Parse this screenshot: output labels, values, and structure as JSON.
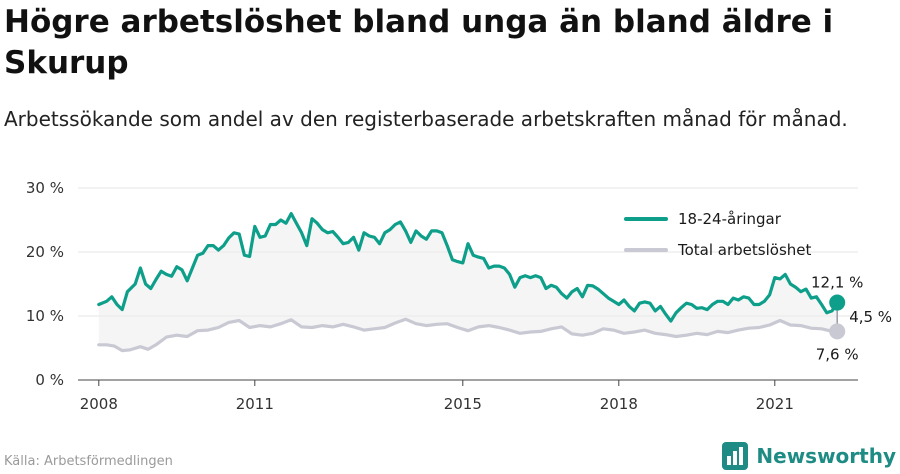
{
  "title": "Högre arbetslöshet bland unga än bland äldre i Skurup",
  "subtitle": "Arbetssökande som andel av den registerbaserade arbetskraften månad för månad.",
  "source": "Källa: Arbetsförmedlingen",
  "brand": "Newsworthy",
  "colors": {
    "youth": "#0e9f8b",
    "total": "#c9c9d4",
    "band": "#ececec",
    "brand": "#1e8c84"
  },
  "chart_data": {
    "type": "line",
    "x_unit": "year (decimal, monthly)",
    "x_ticks": [
      2008,
      2011,
      2015,
      2018,
      2021
    ],
    "x_tick_labels": [
      "2008",
      "2011",
      "2015",
      "2018",
      "2021"
    ],
    "y_ticks": [
      0,
      10,
      20,
      30
    ],
    "y_tick_labels": [
      "0 %",
      "10 %",
      "20 %",
      "30 %"
    ],
    "ylim": [
      0,
      30
    ],
    "xlim": [
      2007.6,
      2022.6
    ],
    "grid": true,
    "legend_position": "top-right",
    "series": [
      {
        "name": "18-24-åringar",
        "color": "#0e9f8b",
        "end_label": "12,1 %",
        "points": [
          [
            2008.0,
            11.8
          ],
          [
            2008.15,
            12.3
          ],
          [
            2008.25,
            13.0
          ],
          [
            2008.35,
            11.8
          ],
          [
            2008.45,
            11.0
          ],
          [
            2008.55,
            13.8
          ],
          [
            2008.7,
            15.0
          ],
          [
            2008.8,
            17.5
          ],
          [
            2008.9,
            15.0
          ],
          [
            2009.0,
            14.3
          ],
          [
            2009.1,
            15.7
          ],
          [
            2009.2,
            17.0
          ],
          [
            2009.3,
            16.5
          ],
          [
            2009.4,
            16.2
          ],
          [
            2009.5,
            17.7
          ],
          [
            2009.6,
            17.2
          ],
          [
            2009.7,
            15.5
          ],
          [
            2009.8,
            17.5
          ],
          [
            2009.9,
            19.5
          ],
          [
            2010.0,
            19.8
          ],
          [
            2010.1,
            21.0
          ],
          [
            2010.2,
            21.0
          ],
          [
            2010.3,
            20.3
          ],
          [
            2010.4,
            21.0
          ],
          [
            2010.5,
            22.2
          ],
          [
            2010.6,
            23.0
          ],
          [
            2010.7,
            22.8
          ],
          [
            2010.8,
            19.5
          ],
          [
            2010.9,
            19.3
          ],
          [
            2011.0,
            24.0
          ],
          [
            2011.1,
            22.3
          ],
          [
            2011.2,
            22.5
          ],
          [
            2011.3,
            24.3
          ],
          [
            2011.4,
            24.3
          ],
          [
            2011.5,
            25.0
          ],
          [
            2011.6,
            24.5
          ],
          [
            2011.7,
            26.0
          ],
          [
            2011.8,
            24.5
          ],
          [
            2011.9,
            23.0
          ],
          [
            2012.0,
            21.0
          ],
          [
            2012.1,
            25.2
          ],
          [
            2012.2,
            24.5
          ],
          [
            2012.3,
            23.5
          ],
          [
            2012.4,
            23.0
          ],
          [
            2012.5,
            23.2
          ],
          [
            2012.6,
            22.3
          ],
          [
            2012.7,
            21.3
          ],
          [
            2012.8,
            21.5
          ],
          [
            2012.9,
            22.3
          ],
          [
            2013.0,
            20.3
          ],
          [
            2013.1,
            23.0
          ],
          [
            2013.2,
            22.5
          ],
          [
            2013.3,
            22.3
          ],
          [
            2013.4,
            21.3
          ],
          [
            2013.5,
            23.0
          ],
          [
            2013.6,
            23.5
          ],
          [
            2013.7,
            24.3
          ],
          [
            2013.8,
            24.7
          ],
          [
            2013.9,
            23.3
          ],
          [
            2014.0,
            21.5
          ],
          [
            2014.1,
            23.3
          ],
          [
            2014.2,
            22.5
          ],
          [
            2014.3,
            22.0
          ],
          [
            2014.4,
            23.3
          ],
          [
            2014.5,
            23.3
          ],
          [
            2014.6,
            23.0
          ],
          [
            2014.7,
            21.0
          ],
          [
            2014.8,
            18.8
          ],
          [
            2014.9,
            18.5
          ],
          [
            2015.0,
            18.3
          ],
          [
            2015.1,
            21.3
          ],
          [
            2015.2,
            19.5
          ],
          [
            2015.3,
            19.2
          ],
          [
            2015.4,
            19.0
          ],
          [
            2015.5,
            17.5
          ],
          [
            2015.6,
            17.8
          ],
          [
            2015.7,
            17.8
          ],
          [
            2015.8,
            17.5
          ],
          [
            2015.9,
            16.5
          ],
          [
            2016.0,
            14.5
          ],
          [
            2016.1,
            16.0
          ],
          [
            2016.2,
            16.3
          ],
          [
            2016.3,
            16.0
          ],
          [
            2016.4,
            16.3
          ],
          [
            2016.5,
            16.0
          ],
          [
            2016.6,
            14.3
          ],
          [
            2016.7,
            14.8
          ],
          [
            2016.8,
            14.5
          ],
          [
            2016.9,
            13.5
          ],
          [
            2017.0,
            12.8
          ],
          [
            2017.1,
            13.8
          ],
          [
            2017.2,
            14.3
          ],
          [
            2017.3,
            13.0
          ],
          [
            2017.4,
            14.8
          ],
          [
            2017.5,
            14.7
          ],
          [
            2017.6,
            14.2
          ],
          [
            2017.7,
            13.5
          ],
          [
            2017.8,
            12.8
          ],
          [
            2017.9,
            12.3
          ],
          [
            2018.0,
            11.8
          ],
          [
            2018.1,
            12.5
          ],
          [
            2018.2,
            11.5
          ],
          [
            2018.3,
            10.8
          ],
          [
            2018.4,
            12.0
          ],
          [
            2018.5,
            12.2
          ],
          [
            2018.6,
            12.0
          ],
          [
            2018.7,
            10.8
          ],
          [
            2018.8,
            11.5
          ],
          [
            2018.9,
            10.3
          ],
          [
            2019.0,
            9.2
          ],
          [
            2019.1,
            10.5
          ],
          [
            2019.2,
            11.3
          ],
          [
            2019.3,
            12.0
          ],
          [
            2019.4,
            11.8
          ],
          [
            2019.5,
            11.2
          ],
          [
            2019.6,
            11.3
          ],
          [
            2019.7,
            11.0
          ],
          [
            2019.8,
            11.8
          ],
          [
            2019.9,
            12.3
          ],
          [
            2020.0,
            12.3
          ],
          [
            2020.1,
            11.8
          ],
          [
            2020.2,
            12.8
          ],
          [
            2020.3,
            12.5
          ],
          [
            2020.4,
            13.0
          ],
          [
            2020.5,
            12.8
          ],
          [
            2020.6,
            11.8
          ],
          [
            2020.7,
            11.8
          ],
          [
            2020.8,
            12.3
          ],
          [
            2020.9,
            13.3
          ],
          [
            2021.0,
            16.0
          ],
          [
            2021.1,
            15.8
          ],
          [
            2021.2,
            16.5
          ],
          [
            2021.3,
            15.0
          ],
          [
            2021.4,
            14.5
          ],
          [
            2021.5,
            13.8
          ],
          [
            2021.6,
            14.2
          ],
          [
            2021.7,
            12.8
          ],
          [
            2021.8,
            13.0
          ],
          [
            2021.9,
            11.8
          ],
          [
            2022.0,
            10.5
          ],
          [
            2022.1,
            10.8
          ],
          [
            2022.2,
            12.1
          ]
        ]
      },
      {
        "name": "Total arbetslöshet",
        "color": "#c9c9d4",
        "end_label": "7,6 %",
        "points": [
          [
            2008.0,
            5.5
          ],
          [
            2008.15,
            5.5
          ],
          [
            2008.3,
            5.3
          ],
          [
            2008.45,
            4.6
          ],
          [
            2008.6,
            4.7
          ],
          [
            2008.8,
            5.2
          ],
          [
            2008.95,
            4.8
          ],
          [
            2009.1,
            5.5
          ],
          [
            2009.3,
            6.7
          ],
          [
            2009.5,
            7.0
          ],
          [
            2009.7,
            6.8
          ],
          [
            2009.9,
            7.7
          ],
          [
            2010.1,
            7.8
          ],
          [
            2010.3,
            8.2
          ],
          [
            2010.5,
            9.0
          ],
          [
            2010.7,
            9.3
          ],
          [
            2010.9,
            8.2
          ],
          [
            2011.1,
            8.5
          ],
          [
            2011.3,
            8.3
          ],
          [
            2011.5,
            8.8
          ],
          [
            2011.7,
            9.4
          ],
          [
            2011.9,
            8.3
          ],
          [
            2012.1,
            8.2
          ],
          [
            2012.3,
            8.5
          ],
          [
            2012.5,
            8.3
          ],
          [
            2012.7,
            8.7
          ],
          [
            2012.9,
            8.3
          ],
          [
            2013.1,
            7.8
          ],
          [
            2013.3,
            8.0
          ],
          [
            2013.5,
            8.2
          ],
          [
            2013.7,
            8.9
          ],
          [
            2013.9,
            9.5
          ],
          [
            2014.1,
            8.8
          ],
          [
            2014.3,
            8.5
          ],
          [
            2014.5,
            8.7
          ],
          [
            2014.7,
            8.8
          ],
          [
            2014.9,
            8.2
          ],
          [
            2015.1,
            7.7
          ],
          [
            2015.3,
            8.3
          ],
          [
            2015.5,
            8.5
          ],
          [
            2015.7,
            8.2
          ],
          [
            2015.9,
            7.8
          ],
          [
            2016.1,
            7.3
          ],
          [
            2016.3,
            7.5
          ],
          [
            2016.5,
            7.6
          ],
          [
            2016.7,
            8.0
          ],
          [
            2016.9,
            8.3
          ],
          [
            2017.1,
            7.2
          ],
          [
            2017.3,
            7.0
          ],
          [
            2017.5,
            7.3
          ],
          [
            2017.7,
            8.0
          ],
          [
            2017.9,
            7.8
          ],
          [
            2018.1,
            7.3
          ],
          [
            2018.3,
            7.5
          ],
          [
            2018.5,
            7.8
          ],
          [
            2018.7,
            7.3
          ],
          [
            2018.9,
            7.1
          ],
          [
            2019.1,
            6.8
          ],
          [
            2019.3,
            7.0
          ],
          [
            2019.5,
            7.3
          ],
          [
            2019.7,
            7.1
          ],
          [
            2019.9,
            7.6
          ],
          [
            2020.1,
            7.4
          ],
          [
            2020.3,
            7.8
          ],
          [
            2020.5,
            8.1
          ],
          [
            2020.7,
            8.2
          ],
          [
            2020.9,
            8.6
          ],
          [
            2021.1,
            9.3
          ],
          [
            2021.3,
            8.6
          ],
          [
            2021.5,
            8.5
          ],
          [
            2021.7,
            8.1
          ],
          [
            2021.9,
            8.0
          ],
          [
            2022.05,
            7.7
          ],
          [
            2022.2,
            7.6
          ]
        ]
      }
    ],
    "difference_label": "4,5 %"
  }
}
